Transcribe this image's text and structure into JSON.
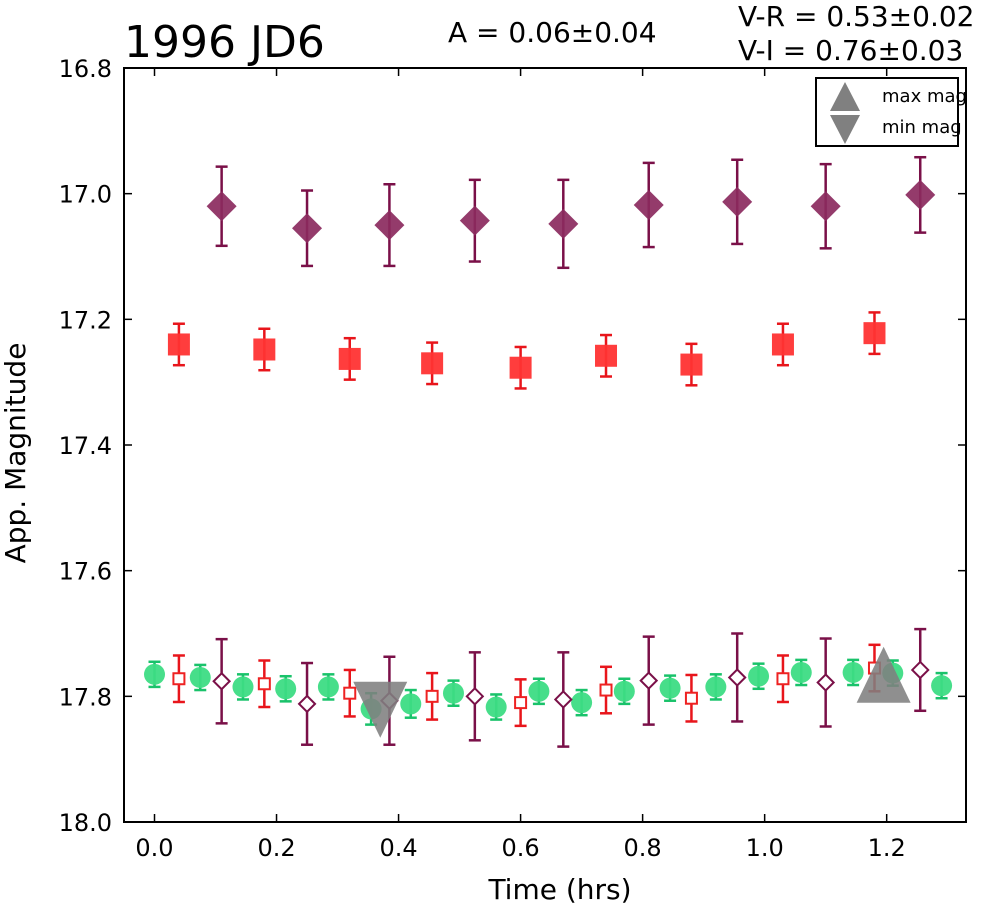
{
  "chart_data": {
    "type": "scatter",
    "title": "1996 JD6",
    "amplitude_text": "A  = 0.06±0.04",
    "color_index_texts": [
      "V-R = 0.53±0.02",
      "V-I  = 0.76±0.03"
    ],
    "xlabel": "Time (hrs)",
    "ylabel": "App. Magnitude",
    "xlim": [
      -0.05,
      1.33
    ],
    "ylim": [
      18.0,
      16.8
    ],
    "y_inverted": true,
    "xticks": [
      "0.0",
      "0.2",
      "0.4",
      "0.6",
      "0.8",
      "1.0",
      "1.2"
    ],
    "xtick_values": [
      0.0,
      0.2,
      0.4,
      0.6,
      0.8,
      1.0,
      1.2
    ],
    "yticks": [
      "16.8",
      "17.0",
      "17.2",
      "17.4",
      "17.6",
      "17.8",
      "18.0"
    ],
    "ytick_values": [
      16.8,
      17.0,
      17.2,
      17.4,
      17.6,
      17.8,
      18.0
    ],
    "grid": false,
    "legend": {
      "placement": "top-right",
      "entries": [
        {
          "label": "max mag",
          "marker": "triangle-up",
          "color": "#808080"
        },
        {
          "label": "min mag",
          "marker": "triangle-down",
          "color": "#808080"
        }
      ]
    },
    "series": [
      {
        "marker": "diamond-filled",
        "color": "#8b2a5e",
        "errcolor": "#7a1048",
        "points": [
          {
            "x": 0.11,
            "y": 17.02,
            "err": 0.063
          },
          {
            "x": 0.25,
            "y": 17.055,
            "err": 0.06
          },
          {
            "x": 0.385,
            "y": 17.05,
            "err": 0.065
          },
          {
            "x": 0.525,
            "y": 17.043,
            "err": 0.065
          },
          {
            "x": 0.67,
            "y": 17.048,
            "err": 0.07
          },
          {
            "x": 0.81,
            "y": 17.018,
            "err": 0.067
          },
          {
            "x": 0.955,
            "y": 17.013,
            "err": 0.067
          },
          {
            "x": 1.1,
            "y": 17.02,
            "err": 0.067
          },
          {
            "x": 1.255,
            "y": 17.002,
            "err": 0.06
          }
        ]
      },
      {
        "marker": "square-filled",
        "color": "#ff3333",
        "errcolor": "#e8151b",
        "points": [
          {
            "x": 0.04,
            "y": 17.24,
            "err": 0.033
          },
          {
            "x": 0.18,
            "y": 17.248,
            "err": 0.033
          },
          {
            "x": 0.32,
            "y": 17.263,
            "err": 0.033
          },
          {
            "x": 0.455,
            "y": 17.27,
            "err": 0.033
          },
          {
            "x": 0.6,
            "y": 17.277,
            "err": 0.033
          },
          {
            "x": 0.74,
            "y": 17.258,
            "err": 0.033
          },
          {
            "x": 0.88,
            "y": 17.272,
            "err": 0.033
          },
          {
            "x": 1.03,
            "y": 17.24,
            "err": 0.033
          },
          {
            "x": 1.18,
            "y": 17.222,
            "err": 0.033
          }
        ]
      },
      {
        "marker": "circle-filled",
        "color": "#3ddc84",
        "errcolor": "#19c26a",
        "points": [
          {
            "x": 0.0,
            "y": 17.765,
            "err": 0.02
          },
          {
            "x": 0.075,
            "y": 17.77,
            "err": 0.02
          },
          {
            "x": 0.145,
            "y": 17.785,
            "err": 0.02
          },
          {
            "x": 0.215,
            "y": 17.788,
            "err": 0.02
          },
          {
            "x": 0.285,
            "y": 17.785,
            "err": 0.02
          },
          {
            "x": 0.355,
            "y": 17.82,
            "err": 0.025
          },
          {
            "x": 0.42,
            "y": 17.812,
            "err": 0.022
          },
          {
            "x": 0.49,
            "y": 17.795,
            "err": 0.02
          },
          {
            "x": 0.56,
            "y": 17.817,
            "err": 0.02
          },
          {
            "x": 0.63,
            "y": 17.792,
            "err": 0.02
          },
          {
            "x": 0.7,
            "y": 17.81,
            "err": 0.02
          },
          {
            "x": 0.77,
            "y": 17.792,
            "err": 0.02
          },
          {
            "x": 0.845,
            "y": 17.787,
            "err": 0.02
          },
          {
            "x": 0.92,
            "y": 17.785,
            "err": 0.02
          },
          {
            "x": 0.99,
            "y": 17.768,
            "err": 0.02
          },
          {
            "x": 1.06,
            "y": 17.762,
            "err": 0.02
          },
          {
            "x": 1.145,
            "y": 17.762,
            "err": 0.02
          },
          {
            "x": 1.21,
            "y": 17.763,
            "err": 0.02
          },
          {
            "x": 1.29,
            "y": 17.783,
            "err": 0.02
          }
        ]
      },
      {
        "marker": "square-open",
        "color": "#ee2222",
        "errcolor": "#e8151b",
        "points": [
          {
            "x": 0.04,
            "y": 17.772,
            "err": 0.037
          },
          {
            "x": 0.18,
            "y": 17.78,
            "err": 0.037
          },
          {
            "x": 0.32,
            "y": 17.795,
            "err": 0.037
          },
          {
            "x": 0.455,
            "y": 17.8,
            "err": 0.037
          },
          {
            "x": 0.6,
            "y": 17.81,
            "err": 0.037
          },
          {
            "x": 0.74,
            "y": 17.79,
            "err": 0.037
          },
          {
            "x": 0.88,
            "y": 17.803,
            "err": 0.037
          },
          {
            "x": 1.03,
            "y": 17.772,
            "err": 0.037
          },
          {
            "x": 1.18,
            "y": 17.755,
            "err": 0.037
          }
        ]
      },
      {
        "marker": "diamond-open",
        "color": "#7a1048",
        "errcolor": "#7a1048",
        "points": [
          {
            "x": 0.11,
            "y": 17.776,
            "err": 0.067
          },
          {
            "x": 0.25,
            "y": 17.812,
            "err": 0.065
          },
          {
            "x": 0.385,
            "y": 17.807,
            "err": 0.07
          },
          {
            "x": 0.525,
            "y": 17.8,
            "err": 0.07
          },
          {
            "x": 0.67,
            "y": 17.805,
            "err": 0.075
          },
          {
            "x": 0.81,
            "y": 17.775,
            "err": 0.07
          },
          {
            "x": 0.955,
            "y": 17.77,
            "err": 0.07
          },
          {
            "x": 1.1,
            "y": 17.778,
            "err": 0.07
          },
          {
            "x": 1.255,
            "y": 17.758,
            "err": 0.065
          }
        ]
      }
    ],
    "markers": [
      {
        "kind": "min mag",
        "shape": "triangle-down",
        "x": 0.37,
        "y": 17.815,
        "color": "#808080"
      },
      {
        "kind": "max mag",
        "shape": "triangle-up",
        "x": 1.195,
        "y": 17.772,
        "color": "#808080"
      }
    ]
  }
}
